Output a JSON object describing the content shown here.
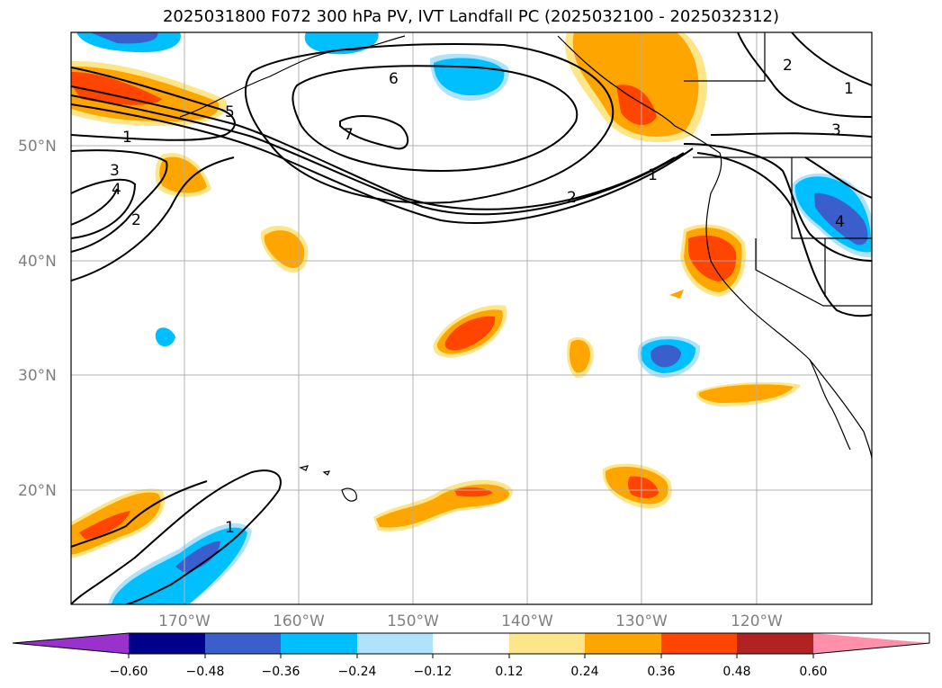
{
  "title": "2025031800 F072 300 hPa PV, IVT Landfall PC (2025032100 - 2025032312)",
  "map": {
    "latitude_ticks": [
      "50°N",
      "40°N",
      "30°N",
      "20°N"
    ],
    "longitude_ticks": [
      "170°W",
      "160°W",
      "150°W",
      "140°W",
      "130°W",
      "120°W"
    ],
    "pv_contour_labels": [
      "1",
      "3",
      "4",
      "2",
      "6",
      "7",
      "5",
      "2",
      "1",
      "3",
      "1",
      "2",
      "1",
      "4"
    ],
    "grid": true
  },
  "colorbar": {
    "extend": "both",
    "tick_labels": [
      "−0.60",
      "−0.48",
      "−0.36",
      "−0.24",
      "−0.12",
      "0.12",
      "0.24",
      "0.36",
      "0.48",
      "0.60"
    ],
    "colors": [
      "#9932cc",
      "#00008b",
      "#3a5fcd",
      "#00bfff",
      "#aee3fb",
      "#ffffff",
      "#fde68a",
      "#ffa500",
      "#ff4500",
      "#b22222",
      "#ff8fab"
    ]
  }
}
